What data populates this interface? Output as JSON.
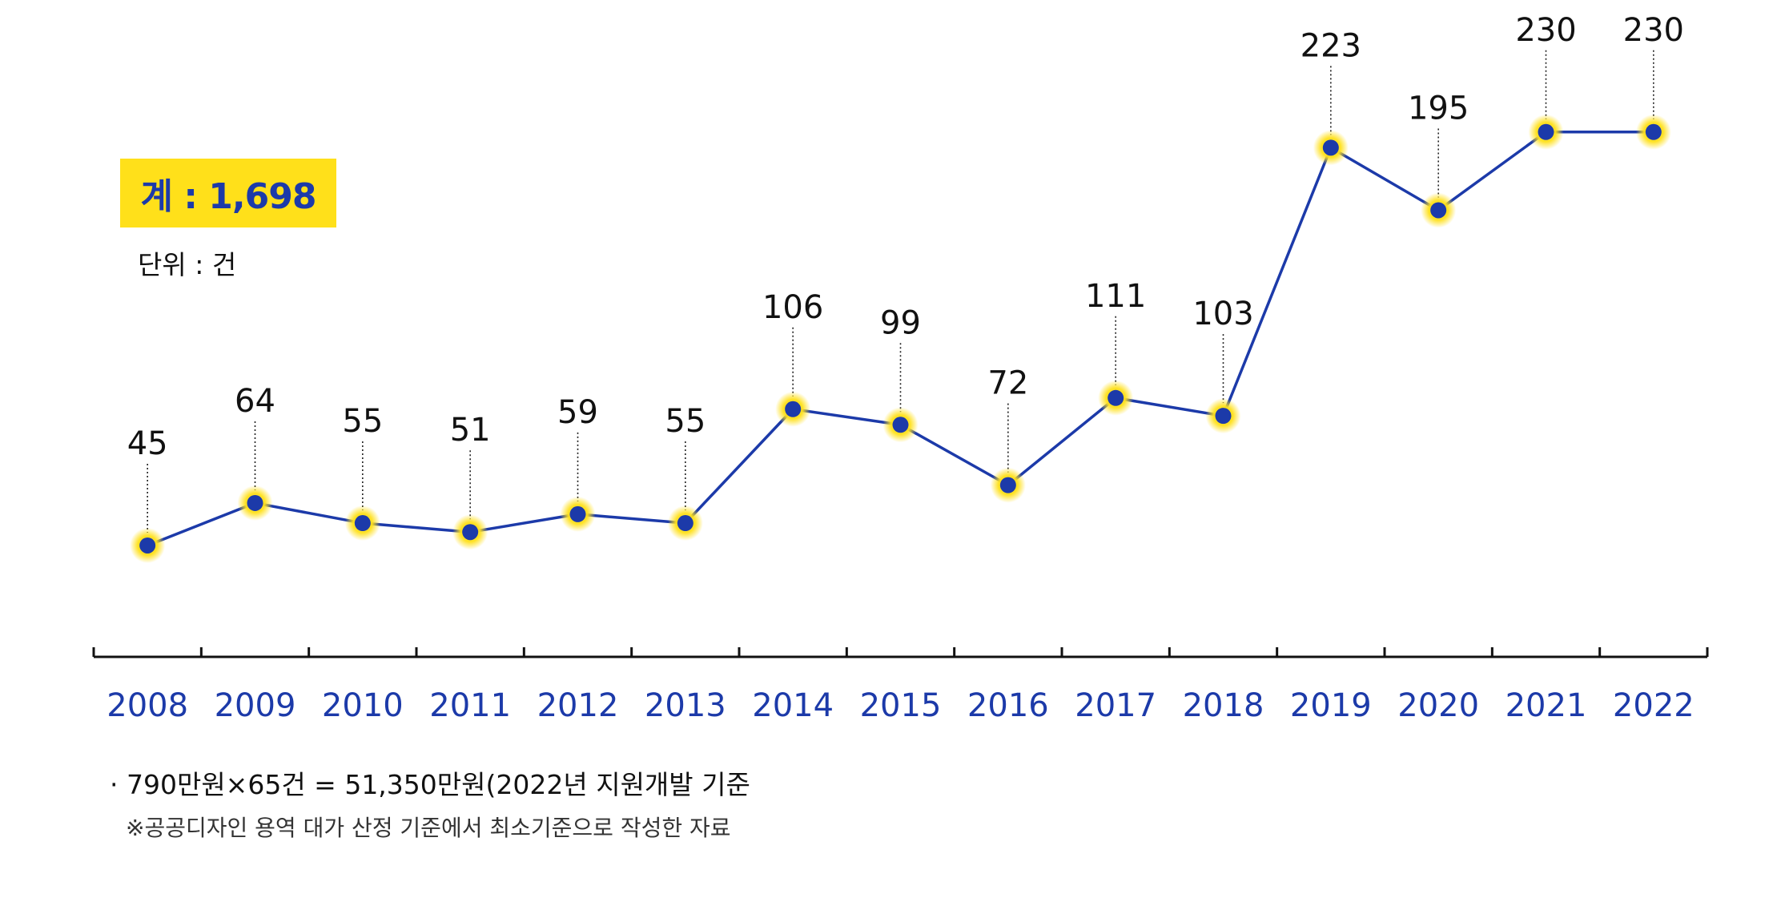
{
  "summary": {
    "total_label": "계 : 1,698",
    "unit_label": "단위 : 건"
  },
  "footnotes": {
    "line1": "· 790만원×65건 = 51,350만원(2022년 지원개발 기준",
    "line2": "※공공디자인 용역 대가 산정 기준에서 최소기준으로 작성한 자료"
  },
  "colors": {
    "line": "#1c3aa9",
    "marker": "#1c3aa9",
    "marker_glow": "#ffe01a",
    "year_label": "#1c3aa9",
    "value_label": "#111111",
    "badge": "#ffe01a"
  },
  "chart_data": {
    "type": "line",
    "x": [
      "2008",
      "2009",
      "2010",
      "2011",
      "2012",
      "2013",
      "2014",
      "2015",
      "2016",
      "2017",
      "2018",
      "2019",
      "2020",
      "2021",
      "2022"
    ],
    "series": [
      {
        "values": [
          45,
          64,
          55,
          51,
          59,
          55,
          106,
          99,
          72,
          111,
          103,
          223,
          195,
          230,
          230
        ]
      }
    ],
    "data_labels": [
      "45",
      "64",
      "55",
      "51",
      "59",
      "55",
      "106",
      "99",
      "72",
      "111",
      "103",
      "223",
      "195",
      "230",
      "230"
    ],
    "title": "",
    "xlabel": "",
    "ylabel": "",
    "grid": false,
    "legend": "none"
  }
}
